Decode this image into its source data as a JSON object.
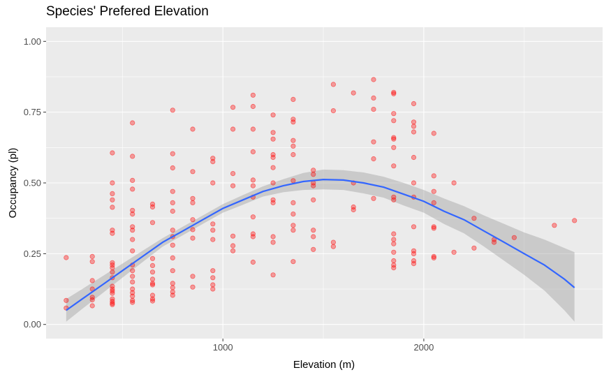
{
  "chart_data": {
    "type": "scatter",
    "title": "Species' Prefered Elevation",
    "xlabel": "Elevation (m)",
    "ylabel": "Occupancy (pl)",
    "xlim": [
      120,
      2890
    ],
    "ylim": [
      -0.05,
      1.05
    ],
    "x_ticks": [
      1000,
      2000
    ],
    "x_tick_labels": [
      "1000",
      "2000"
    ],
    "y_ticks": [
      0,
      0.25,
      0.5,
      0.75,
      1
    ],
    "y_tick_labels": [
      "0.00",
      "0.25",
      "0.50",
      "0.75",
      "1.00"
    ],
    "grid": true,
    "background": "#EBEBEB",
    "point_color": "#FF0000",
    "smooth_color": "#3366FF",
    "ribbon_color": "#999999",
    "points": [
      [
        220,
        0.236
      ],
      [
        220,
        0.085
      ],
      [
        220,
        0.058
      ],
      [
        350,
        0.24
      ],
      [
        350,
        0.222
      ],
      [
        350,
        0.155
      ],
      [
        350,
        0.125
      ],
      [
        350,
        0.096
      ],
      [
        350,
        0.087
      ],
      [
        350,
        0.066
      ],
      [
        450,
        0.606
      ],
      [
        450,
        0.5
      ],
      [
        450,
        0.462
      ],
      [
        450,
        0.44
      ],
      [
        450,
        0.414
      ],
      [
        450,
        0.333
      ],
      [
        450,
        0.322
      ],
      [
        450,
        0.218
      ],
      [
        450,
        0.21
      ],
      [
        450,
        0.2
      ],
      [
        450,
        0.185
      ],
      [
        450,
        0.165
      ],
      [
        450,
        0.135
      ],
      [
        450,
        0.125
      ],
      [
        450,
        0.118
      ],
      [
        450,
        0.11
      ],
      [
        450,
        0.09
      ],
      [
        450,
        0.082
      ],
      [
        450,
        0.075
      ],
      [
        450,
        0.07
      ],
      [
        550,
        0.712
      ],
      [
        550,
        0.594
      ],
      [
        550,
        0.509
      ],
      [
        550,
        0.478
      ],
      [
        550,
        0.403
      ],
      [
        550,
        0.39
      ],
      [
        550,
        0.345
      ],
      [
        550,
        0.333
      ],
      [
        550,
        0.3
      ],
      [
        550,
        0.26
      ],
      [
        550,
        0.21
      ],
      [
        550,
        0.19
      ],
      [
        550,
        0.17
      ],
      [
        550,
        0.15
      ],
      [
        550,
        0.125
      ],
      [
        550,
        0.112
      ],
      [
        550,
        0.1
      ],
      [
        550,
        0.085
      ],
      [
        550,
        0.078
      ],
      [
        650,
        0.425
      ],
      [
        650,
        0.415
      ],
      [
        650,
        0.36
      ],
      [
        650,
        0.233
      ],
      [
        650,
        0.208
      ],
      [
        650,
        0.185
      ],
      [
        650,
        0.16
      ],
      [
        650,
        0.145
      ],
      [
        650,
        0.14
      ],
      [
        650,
        0.103
      ],
      [
        650,
        0.09
      ],
      [
        650,
        0.083
      ],
      [
        750,
        0.757
      ],
      [
        750,
        0.603
      ],
      [
        750,
        0.553
      ],
      [
        750,
        0.47
      ],
      [
        750,
        0.43
      ],
      [
        750,
        0.4
      ],
      [
        750,
        0.333
      ],
      [
        750,
        0.31
      ],
      [
        750,
        0.28
      ],
      [
        750,
        0.235
      ],
      [
        750,
        0.19
      ],
      [
        750,
        0.145
      ],
      [
        750,
        0.13
      ],
      [
        750,
        0.115
      ],
      [
        750,
        0.103
      ],
      [
        850,
        0.69
      ],
      [
        850,
        0.54
      ],
      [
        850,
        0.445
      ],
      [
        850,
        0.43
      ],
      [
        850,
        0.37
      ],
      [
        850,
        0.335
      ],
      [
        850,
        0.305
      ],
      [
        850,
        0.17
      ],
      [
        850,
        0.132
      ],
      [
        950,
        0.587
      ],
      [
        950,
        0.575
      ],
      [
        950,
        0.5
      ],
      [
        950,
        0.355
      ],
      [
        950,
        0.333
      ],
      [
        950,
        0.3
      ],
      [
        950,
        0.19
      ],
      [
        950,
        0.165
      ],
      [
        950,
        0.14
      ],
      [
        950,
        0.125
      ],
      [
        1050,
        0.767
      ],
      [
        1050,
        0.69
      ],
      [
        1050,
        0.533
      ],
      [
        1050,
        0.49
      ],
      [
        1050,
        0.312
      ],
      [
        1050,
        0.278
      ],
      [
        1050,
        0.26
      ],
      [
        1150,
        0.81
      ],
      [
        1150,
        0.77
      ],
      [
        1150,
        0.69
      ],
      [
        1150,
        0.61
      ],
      [
        1150,
        0.51
      ],
      [
        1150,
        0.49
      ],
      [
        1150,
        0.45
      ],
      [
        1150,
        0.38
      ],
      [
        1150,
        0.32
      ],
      [
        1150,
        0.31
      ],
      [
        1150,
        0.22
      ],
      [
        1250,
        0.74
      ],
      [
        1250,
        0.678
      ],
      [
        1250,
        0.655
      ],
      [
        1250,
        0.6
      ],
      [
        1250,
        0.59
      ],
      [
        1250,
        0.554
      ],
      [
        1250,
        0.5
      ],
      [
        1250,
        0.44
      ],
      [
        1250,
        0.43
      ],
      [
        1250,
        0.31
      ],
      [
        1250,
        0.29
      ],
      [
        1250,
        0.175
      ],
      [
        1350,
        0.795
      ],
      [
        1350,
        0.725
      ],
      [
        1350,
        0.715
      ],
      [
        1350,
        0.65
      ],
      [
        1350,
        0.63
      ],
      [
        1350,
        0.6
      ],
      [
        1350,
        0.508
      ],
      [
        1350,
        0.43
      ],
      [
        1350,
        0.39
      ],
      [
        1350,
        0.35
      ],
      [
        1350,
        0.333
      ],
      [
        1350,
        0.222
      ],
      [
        1450,
        0.545
      ],
      [
        1450,
        0.53
      ],
      [
        1450,
        0.5
      ],
      [
        1450,
        0.49
      ],
      [
        1450,
        0.44
      ],
      [
        1450,
        0.333
      ],
      [
        1450,
        0.31
      ],
      [
        1450,
        0.265
      ],
      [
        1550,
        0.848
      ],
      [
        1550,
        0.755
      ],
      [
        1550,
        0.29
      ],
      [
        1550,
        0.275
      ],
      [
        1650,
        0.818
      ],
      [
        1650,
        0.5
      ],
      [
        1650,
        0.415
      ],
      [
        1650,
        0.405
      ],
      [
        1750,
        0.865
      ],
      [
        1750,
        0.8
      ],
      [
        1750,
        0.76
      ],
      [
        1750,
        0.645
      ],
      [
        1750,
        0.585
      ],
      [
        1750,
        0.445
      ],
      [
        1850,
        0.82
      ],
      [
        1850,
        0.815
      ],
      [
        1850,
        0.745
      ],
      [
        1850,
        0.72
      ],
      [
        1850,
        0.66
      ],
      [
        1850,
        0.655
      ],
      [
        1850,
        0.625
      ],
      [
        1850,
        0.56
      ],
      [
        1850,
        0.45
      ],
      [
        1850,
        0.44
      ],
      [
        1850,
        0.32
      ],
      [
        1850,
        0.3
      ],
      [
        1850,
        0.285
      ],
      [
        1850,
        0.255
      ],
      [
        1850,
        0.225
      ],
      [
        1850,
        0.21
      ],
      [
        1850,
        0.2
      ],
      [
        1950,
        0.78
      ],
      [
        1950,
        0.715
      ],
      [
        1950,
        0.7
      ],
      [
        1950,
        0.68
      ],
      [
        1950,
        0.59
      ],
      [
        1950,
        0.5
      ],
      [
        1950,
        0.45
      ],
      [
        1950,
        0.345
      ],
      [
        1950,
        0.26
      ],
      [
        1950,
        0.25
      ],
      [
        1950,
        0.225
      ],
      [
        1950,
        0.215
      ],
      [
        2050,
        0.675
      ],
      [
        2050,
        0.525
      ],
      [
        2050,
        0.47
      ],
      [
        2050,
        0.43
      ],
      [
        2050,
        0.345
      ],
      [
        2050,
        0.34
      ],
      [
        2050,
        0.24
      ],
      [
        2050,
        0.235
      ],
      [
        2150,
        0.5
      ],
      [
        2150,
        0.255
      ],
      [
        2250,
        0.375
      ],
      [
        2250,
        0.27
      ],
      [
        2350,
        0.3
      ],
      [
        2350,
        0.29
      ],
      [
        2450,
        0.307
      ],
      [
        2650,
        0.35
      ],
      [
        2750,
        0.367
      ]
    ],
    "smooth_line": {
      "x": [
        220,
        300,
        400,
        500,
        600,
        700,
        800,
        900,
        1000,
        1100,
        1200,
        1300,
        1400,
        1500,
        1600,
        1700,
        1800,
        1900,
        2000,
        2100,
        2200,
        2300,
        2400,
        2500,
        2600,
        2700,
        2750
      ],
      "y": [
        0.05,
        0.09,
        0.14,
        0.19,
        0.24,
        0.29,
        0.33,
        0.37,
        0.41,
        0.44,
        0.47,
        0.49,
        0.505,
        0.512,
        0.51,
        0.5,
        0.485,
        0.46,
        0.435,
        0.4,
        0.37,
        0.33,
        0.29,
        0.25,
        0.21,
        0.16,
        0.13
      ],
      "ci_upper": [
        0.09,
        0.125,
        0.17,
        0.215,
        0.26,
        0.305,
        0.345,
        0.385,
        0.425,
        0.457,
        0.488,
        0.513,
        0.535,
        0.547,
        0.545,
        0.537,
        0.522,
        0.5,
        0.475,
        0.445,
        0.418,
        0.385,
        0.355,
        0.325,
        0.3,
        0.27,
        0.255
      ],
      "ci_lower": [
        0.01,
        0.055,
        0.11,
        0.165,
        0.22,
        0.275,
        0.315,
        0.355,
        0.395,
        0.423,
        0.452,
        0.467,
        0.475,
        0.477,
        0.475,
        0.463,
        0.448,
        0.42,
        0.395,
        0.355,
        0.322,
        0.275,
        0.225,
        0.175,
        0.12,
        0.05,
        0.01
      ]
    }
  }
}
